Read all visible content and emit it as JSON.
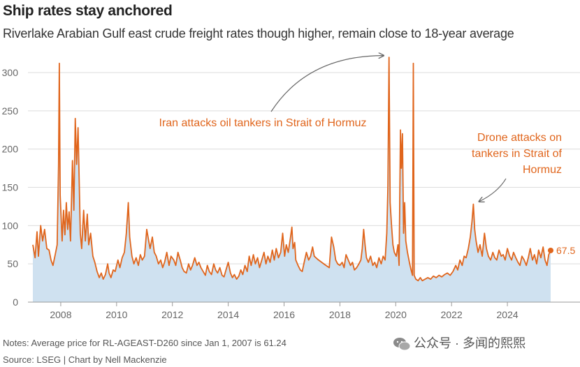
{
  "header": {
    "title": "Ship rates stay anchored",
    "subtitle": "Riverlake Arabian Gulf east crude freight rates though higher, remain close to 18-year average"
  },
  "footer": {
    "notes": "Notes: Average price for RL-AGEAST-D260 since Jan 1, 2007 is 61.24",
    "source": "Source: LSEG | Chart by Nell Mackenzie"
  },
  "watermark": {
    "text": "公众号 · 多闻的熙熙",
    "icon": "wechat-icon"
  },
  "colors": {
    "line": "#e0651c",
    "area": "#cfe1f0",
    "annotation": "#e0651c",
    "arrow": "#666666",
    "grid": "#dcdcdc"
  },
  "chart_data": {
    "type": "area",
    "title": "Ship rates stay anchored",
    "xlabel": "",
    "ylabel": "",
    "xlim": [
      2007.0,
      2025.6
    ],
    "ylim": [
      0,
      300
    ],
    "yticks": [
      0,
      50,
      100,
      150,
      200,
      250,
      300
    ],
    "xticks": [
      2008,
      2010,
      2012,
      2014,
      2016,
      2018,
      2020,
      2022,
      2024
    ],
    "grid": "horizontal",
    "end_label": "67.5",
    "annotations": [
      {
        "text": "Iran attacks oil tankers in Strait of Hormuz",
        "lines": [
          "Iran attacks oil tankers in Strait of Hormuz"
        ],
        "points_to": {
          "x": 2019.7,
          "y": 315
        }
      },
      {
        "text": "Drone attacks on tankers in Strait of Hormuz",
        "lines": [
          "Drone attacks on",
          "tankers in Strait of",
          "Hormuz"
        ],
        "points_to": {
          "x": 2022.9,
          "y": 128
        }
      }
    ],
    "series": [
      {
        "values": [
          [
            2007.0,
            75
          ],
          [
            2007.08,
            58
          ],
          [
            2007.15,
            92
          ],
          [
            2007.2,
            60
          ],
          [
            2007.28,
            100
          ],
          [
            2007.35,
            80
          ],
          [
            2007.42,
            95
          ],
          [
            2007.5,
            70
          ],
          [
            2007.58,
            68
          ],
          [
            2007.65,
            55
          ],
          [
            2007.72,
            48
          ],
          [
            2007.8,
            62
          ],
          [
            2007.87,
            75
          ],
          [
            2007.92,
            180
          ],
          [
            2007.95,
            312
          ],
          [
            2007.98,
            140
          ],
          [
            2008.05,
            80
          ],
          [
            2008.1,
            120
          ],
          [
            2008.15,
            88
          ],
          [
            2008.2,
            130
          ],
          [
            2008.25,
            95
          ],
          [
            2008.3,
            118
          ],
          [
            2008.35,
            80
          ],
          [
            2008.42,
            185
          ],
          [
            2008.47,
            120
          ],
          [
            2008.52,
            240
          ],
          [
            2008.57,
            180
          ],
          [
            2008.62,
            228
          ],
          [
            2008.66,
            160
          ],
          [
            2008.7,
            90
          ],
          [
            2008.75,
            70
          ],
          [
            2008.82,
            120
          ],
          [
            2008.88,
            80
          ],
          [
            2008.95,
            115
          ],
          [
            2009.0,
            75
          ],
          [
            2009.07,
            90
          ],
          [
            2009.15,
            60
          ],
          [
            2009.22,
            52
          ],
          [
            2009.3,
            40
          ],
          [
            2009.38,
            32
          ],
          [
            2009.45,
            38
          ],
          [
            2009.52,
            30
          ],
          [
            2009.6,
            36
          ],
          [
            2009.68,
            50
          ],
          [
            2009.73,
            38
          ],
          [
            2009.8,
            32
          ],
          [
            2009.88,
            42
          ],
          [
            2009.95,
            40
          ],
          [
            2010.05,
            55
          ],
          [
            2010.12,
            45
          ],
          [
            2010.2,
            58
          ],
          [
            2010.28,
            65
          ],
          [
            2010.35,
            90
          ],
          [
            2010.42,
            130
          ],
          [
            2010.47,
            85
          ],
          [
            2010.55,
            60
          ],
          [
            2010.62,
            50
          ],
          [
            2010.7,
            58
          ],
          [
            2010.78,
            48
          ],
          [
            2010.85,
            62
          ],
          [
            2010.92,
            55
          ],
          [
            2011.0,
            60
          ],
          [
            2011.08,
            95
          ],
          [
            2011.15,
            80
          ],
          [
            2011.2,
            70
          ],
          [
            2011.28,
            85
          ],
          [
            2011.35,
            65
          ],
          [
            2011.42,
            60
          ],
          [
            2011.5,
            50
          ],
          [
            2011.58,
            55
          ],
          [
            2011.65,
            45
          ],
          [
            2011.72,
            52
          ],
          [
            2011.8,
            65
          ],
          [
            2011.88,
            48
          ],
          [
            2011.95,
            60
          ],
          [
            2012.05,
            55
          ],
          [
            2012.12,
            48
          ],
          [
            2012.2,
            65
          ],
          [
            2012.28,
            55
          ],
          [
            2012.35,
            45
          ],
          [
            2012.42,
            40
          ],
          [
            2012.5,
            38
          ],
          [
            2012.58,
            50
          ],
          [
            2012.65,
            42
          ],
          [
            2012.72,
            48
          ],
          [
            2012.8,
            58
          ],
          [
            2012.88,
            48
          ],
          [
            2012.95,
            52
          ],
          [
            2013.02,
            45
          ],
          [
            2013.1,
            40
          ],
          [
            2013.18,
            35
          ],
          [
            2013.25,
            48
          ],
          [
            2013.32,
            40
          ],
          [
            2013.4,
            36
          ],
          [
            2013.48,
            50
          ],
          [
            2013.55,
            42
          ],
          [
            2013.62,
            38
          ],
          [
            2013.7,
            45
          ],
          [
            2013.78,
            35
          ],
          [
            2013.85,
            33
          ],
          [
            2013.92,
            42
          ],
          [
            2014.0,
            52
          ],
          [
            2014.08,
            38
          ],
          [
            2014.15,
            32
          ],
          [
            2014.22,
            36
          ],
          [
            2014.3,
            30
          ],
          [
            2014.38,
            34
          ],
          [
            2014.45,
            42
          ],
          [
            2014.52,
            36
          ],
          [
            2014.6,
            48
          ],
          [
            2014.68,
            40
          ],
          [
            2014.75,
            60
          ],
          [
            2014.82,
            48
          ],
          [
            2014.9,
            62
          ],
          [
            2014.97,
            50
          ],
          [
            2015.05,
            58
          ],
          [
            2015.12,
            45
          ],
          [
            2015.2,
            55
          ],
          [
            2015.28,
            65
          ],
          [
            2015.35,
            50
          ],
          [
            2015.42,
            60
          ],
          [
            2015.5,
            52
          ],
          [
            2015.58,
            68
          ],
          [
            2015.65,
            55
          ],
          [
            2015.72,
            70
          ],
          [
            2015.8,
            58
          ],
          [
            2015.88,
            65
          ],
          [
            2015.95,
            90
          ],
          [
            2016.02,
            60
          ],
          [
            2016.08,
            75
          ],
          [
            2016.15,
            65
          ],
          [
            2016.22,
            82
          ],
          [
            2016.28,
            98
          ],
          [
            2016.32,
            70
          ],
          [
            2016.38,
            78
          ],
          [
            2016.42,
            55
          ],
          [
            2016.5,
            48
          ],
          [
            2016.58,
            42
          ],
          [
            2016.65,
            40
          ],
          [
            2016.72,
            52
          ],
          [
            2016.8,
            65
          ],
          [
            2016.88,
            55
          ],
          [
            2016.95,
            60
          ],
          [
            2017.02,
            72
          ],
          [
            2017.08,
            60
          ],
          [
            2017.2,
            56
          ],
          [
            2017.35,
            52
          ],
          [
            2017.5,
            48
          ],
          [
            2017.62,
            45
          ],
          [
            2017.7,
            85
          ],
          [
            2017.78,
            72
          ],
          [
            2017.85,
            55
          ],
          [
            2017.92,
            50
          ],
          [
            2018.0,
            48
          ],
          [
            2018.08,
            52
          ],
          [
            2018.15,
            45
          ],
          [
            2018.22,
            62
          ],
          [
            2018.3,
            55
          ],
          [
            2018.38,
            48
          ],
          [
            2018.45,
            52
          ],
          [
            2018.52,
            42
          ],
          [
            2018.6,
            45
          ],
          [
            2018.68,
            50
          ],
          [
            2018.75,
            55
          ],
          [
            2018.8,
            70
          ],
          [
            2018.85,
            95
          ],
          [
            2018.9,
            75
          ],
          [
            2018.95,
            58
          ],
          [
            2019.02,
            52
          ],
          [
            2019.1,
            60
          ],
          [
            2019.18,
            48
          ],
          [
            2019.25,
            52
          ],
          [
            2019.32,
            45
          ],
          [
            2019.4,
            58
          ],
          [
            2019.48,
            50
          ],
          [
            2019.55,
            60
          ],
          [
            2019.62,
            55
          ],
          [
            2019.68,
            90
          ],
          [
            2019.72,
            150
          ],
          [
            2019.76,
            320
          ],
          [
            2019.8,
            130
          ],
          [
            2019.85,
            100
          ],
          [
            2019.9,
            75
          ],
          [
            2019.95,
            65
          ],
          [
            2020.02,
            60
          ],
          [
            2020.08,
            75
          ],
          [
            2020.12,
            48
          ],
          [
            2020.17,
            225
          ],
          [
            2020.2,
            175
          ],
          [
            2020.24,
            220
          ],
          [
            2020.28,
            90
          ],
          [
            2020.32,
            130
          ],
          [
            2020.36,
            80
          ],
          [
            2020.42,
            65
          ],
          [
            2020.5,
            50
          ],
          [
            2020.55,
            42
          ],
          [
            2020.6,
            35
          ],
          [
            2020.63,
            312
          ],
          [
            2020.66,
            35
          ],
          [
            2020.72,
            30
          ],
          [
            2020.8,
            28
          ],
          [
            2020.88,
            32
          ],
          [
            2020.95,
            28
          ],
          [
            2021.05,
            30
          ],
          [
            2021.15,
            32
          ],
          [
            2021.25,
            30
          ],
          [
            2021.35,
            34
          ],
          [
            2021.45,
            32
          ],
          [
            2021.55,
            35
          ],
          [
            2021.65,
            33
          ],
          [
            2021.75,
            36
          ],
          [
            2021.85,
            38
          ],
          [
            2021.95,
            35
          ],
          [
            2022.05,
            40
          ],
          [
            2022.15,
            48
          ],
          [
            2022.22,
            42
          ],
          [
            2022.3,
            55
          ],
          [
            2022.38,
            48
          ],
          [
            2022.45,
            60
          ],
          [
            2022.52,
            58
          ],
          [
            2022.6,
            70
          ],
          [
            2022.67,
            85
          ],
          [
            2022.73,
            105
          ],
          [
            2022.78,
            128
          ],
          [
            2022.83,
            95
          ],
          [
            2022.88,
            80
          ],
          [
            2022.95,
            65
          ],
          [
            2023.02,
            75
          ],
          [
            2023.1,
            60
          ],
          [
            2023.18,
            90
          ],
          [
            2023.25,
            70
          ],
          [
            2023.32,
            60
          ],
          [
            2023.4,
            55
          ],
          [
            2023.48,
            65
          ],
          [
            2023.55,
            58
          ],
          [
            2023.62,
            55
          ],
          [
            2023.7,
            68
          ],
          [
            2023.78,
            60
          ],
          [
            2023.85,
            62
          ],
          [
            2023.92,
            55
          ],
          [
            2024.0,
            70
          ],
          [
            2024.08,
            60
          ],
          [
            2024.15,
            55
          ],
          [
            2024.22,
            65
          ],
          [
            2024.3,
            58
          ],
          [
            2024.38,
            52
          ],
          [
            2024.45,
            48
          ],
          [
            2024.52,
            60
          ],
          [
            2024.6,
            55
          ],
          [
            2024.68,
            48
          ],
          [
            2024.75,
            58
          ],
          [
            2024.82,
            70
          ],
          [
            2024.9,
            55
          ],
          [
            2024.97,
            62
          ],
          [
            2025.05,
            50
          ],
          [
            2025.12,
            68
          ],
          [
            2025.2,
            58
          ],
          [
            2025.28,
            72
          ],
          [
            2025.35,
            55
          ],
          [
            2025.42,
            48
          ],
          [
            2025.48,
            62
          ],
          [
            2025.55,
            67.5
          ]
        ]
      }
    ]
  }
}
